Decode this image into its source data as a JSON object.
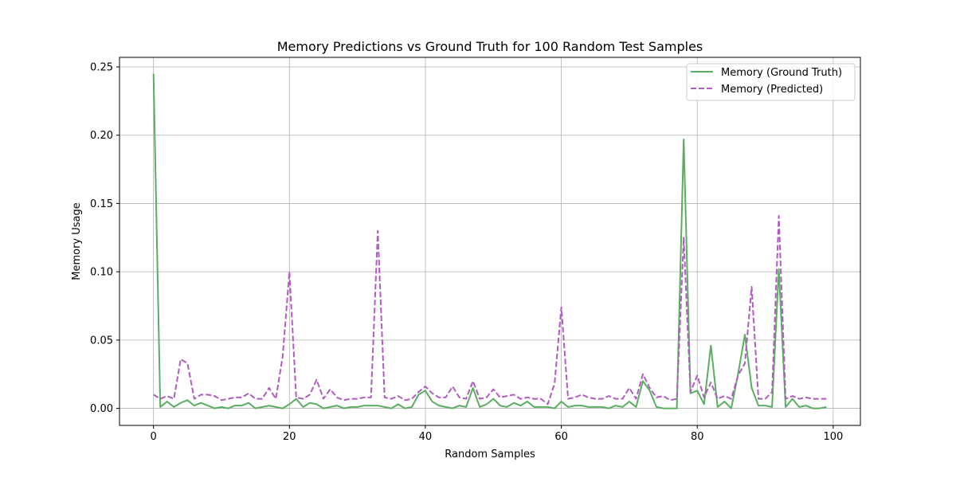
{
  "chart_data": {
    "type": "line",
    "title": "Memory Predictions vs Ground Truth for 100 Random Test Samples",
    "xlabel": "Random Samples",
    "ylabel": "Memory Usage",
    "xlim": [
      -5,
      104
    ],
    "ylim": [
      -0.0125,
      0.257
    ],
    "xticks": [
      0,
      20,
      40,
      60,
      80,
      100
    ],
    "yticks": [
      0.0,
      0.05,
      0.1,
      0.15,
      0.2,
      0.25
    ],
    "ytick_labels": [
      "0.00",
      "0.05",
      "0.10",
      "0.15",
      "0.20",
      "0.25"
    ],
    "grid": true,
    "legend_position": "top-right",
    "x": [
      0,
      1,
      2,
      3,
      4,
      5,
      6,
      7,
      8,
      9,
      10,
      11,
      12,
      13,
      14,
      15,
      16,
      17,
      18,
      19,
      20,
      21,
      22,
      23,
      24,
      25,
      26,
      27,
      28,
      29,
      30,
      31,
      32,
      33,
      34,
      35,
      36,
      37,
      38,
      39,
      40,
      41,
      42,
      43,
      44,
      45,
      46,
      47,
      48,
      49,
      50,
      51,
      52,
      53,
      54,
      55,
      56,
      57,
      58,
      59,
      60,
      61,
      62,
      63,
      64,
      65,
      66,
      67,
      68,
      69,
      70,
      71,
      72,
      73,
      74,
      75,
      76,
      77,
      78,
      79,
      80,
      81,
      82,
      83,
      84,
      85,
      86,
      87,
      88,
      89,
      90,
      91,
      92,
      93,
      94,
      95,
      96,
      97,
      98,
      99
    ],
    "series": [
      {
        "name": "Memory (Ground Truth)",
        "color": "#5aae61",
        "style": "solid",
        "values": [
          0.245,
          0.001,
          0.005,
          0.001,
          0.004,
          0.006,
          0.002,
          0.004,
          0.002,
          0.0,
          0.001,
          0.0,
          0.002,
          0.002,
          0.004,
          0.0,
          0.001,
          0.002,
          0.001,
          0.0,
          0.003,
          0.007,
          0.001,
          0.004,
          0.003,
          0.0,
          0.001,
          0.002,
          0.0,
          0.001,
          0.001,
          0.002,
          0.002,
          0.002,
          0.001,
          0.0,
          0.003,
          0.0,
          0.001,
          0.01,
          0.013,
          0.005,
          0.002,
          0.001,
          0.0,
          0.002,
          0.001,
          0.015,
          0.001,
          0.003,
          0.007,
          0.002,
          0.001,
          0.004,
          0.002,
          0.005,
          0.001,
          0.001,
          0.001,
          0.0,
          0.005,
          0.001,
          0.002,
          0.002,
          0.001,
          0.001,
          0.001,
          0.0,
          0.002,
          0.001,
          0.005,
          0.001,
          0.02,
          0.013,
          0.001,
          0.0,
          0.0,
          0.0,
          0.197,
          0.011,
          0.013,
          0.003,
          0.046,
          0.001,
          0.005,
          0.0,
          0.025,
          0.054,
          0.015,
          0.002,
          0.002,
          0.001,
          0.102,
          0.001,
          0.007,
          0.001,
          0.002,
          0.0,
          0.0,
          0.001
        ]
      },
      {
        "name": "Memory (Predicted)",
        "color": "#b05cc0",
        "style": "dashed",
        "values": [
          0.01,
          0.007,
          0.009,
          0.007,
          0.036,
          0.033,
          0.007,
          0.01,
          0.01,
          0.009,
          0.006,
          0.007,
          0.008,
          0.008,
          0.011,
          0.007,
          0.007,
          0.015,
          0.007,
          0.038,
          0.1,
          0.008,
          0.007,
          0.01,
          0.021,
          0.007,
          0.014,
          0.008,
          0.006,
          0.007,
          0.007,
          0.008,
          0.008,
          0.13,
          0.008,
          0.007,
          0.009,
          0.006,
          0.007,
          0.012,
          0.016,
          0.011,
          0.008,
          0.008,
          0.016,
          0.008,
          0.007,
          0.02,
          0.007,
          0.008,
          0.014,
          0.008,
          0.009,
          0.01,
          0.007,
          0.008,
          0.007,
          0.007,
          0.003,
          0.018,
          0.074,
          0.007,
          0.008,
          0.01,
          0.008,
          0.007,
          0.007,
          0.009,
          0.007,
          0.007,
          0.015,
          0.007,
          0.025,
          0.015,
          0.008,
          0.009,
          0.006,
          0.007,
          0.125,
          0.012,
          0.024,
          0.008,
          0.019,
          0.007,
          0.009,
          0.007,
          0.024,
          0.033,
          0.089,
          0.007,
          0.007,
          0.012,
          0.141,
          0.007,
          0.009,
          0.007,
          0.008,
          0.007,
          0.007,
          0.007
        ]
      }
    ]
  }
}
